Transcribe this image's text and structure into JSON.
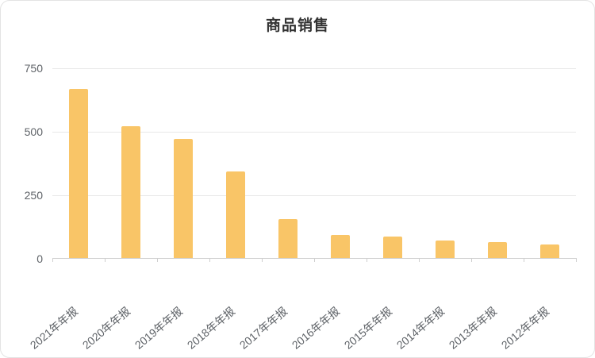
{
  "chart_data": {
    "type": "bar",
    "title": "商品销售",
    "categories": [
      "2021年年报",
      "2020年年报",
      "2019年年报",
      "2018年年报",
      "2017年年报",
      "2016年年报",
      "2015年年报",
      "2014年年报",
      "2013年年报",
      "2012年年报"
    ],
    "values": [
      665,
      520,
      468,
      342,
      153,
      90,
      84,
      70,
      62,
      54
    ],
    "xlabel": "",
    "ylabel": "",
    "ylim": [
      0,
      750
    ],
    "yticks": [
      0,
      250,
      500,
      750
    ],
    "grid": true,
    "legend_position": "none",
    "bar_color": "#F9C567",
    "axis_label_color": "#5f6368",
    "title_color": "#333333"
  }
}
